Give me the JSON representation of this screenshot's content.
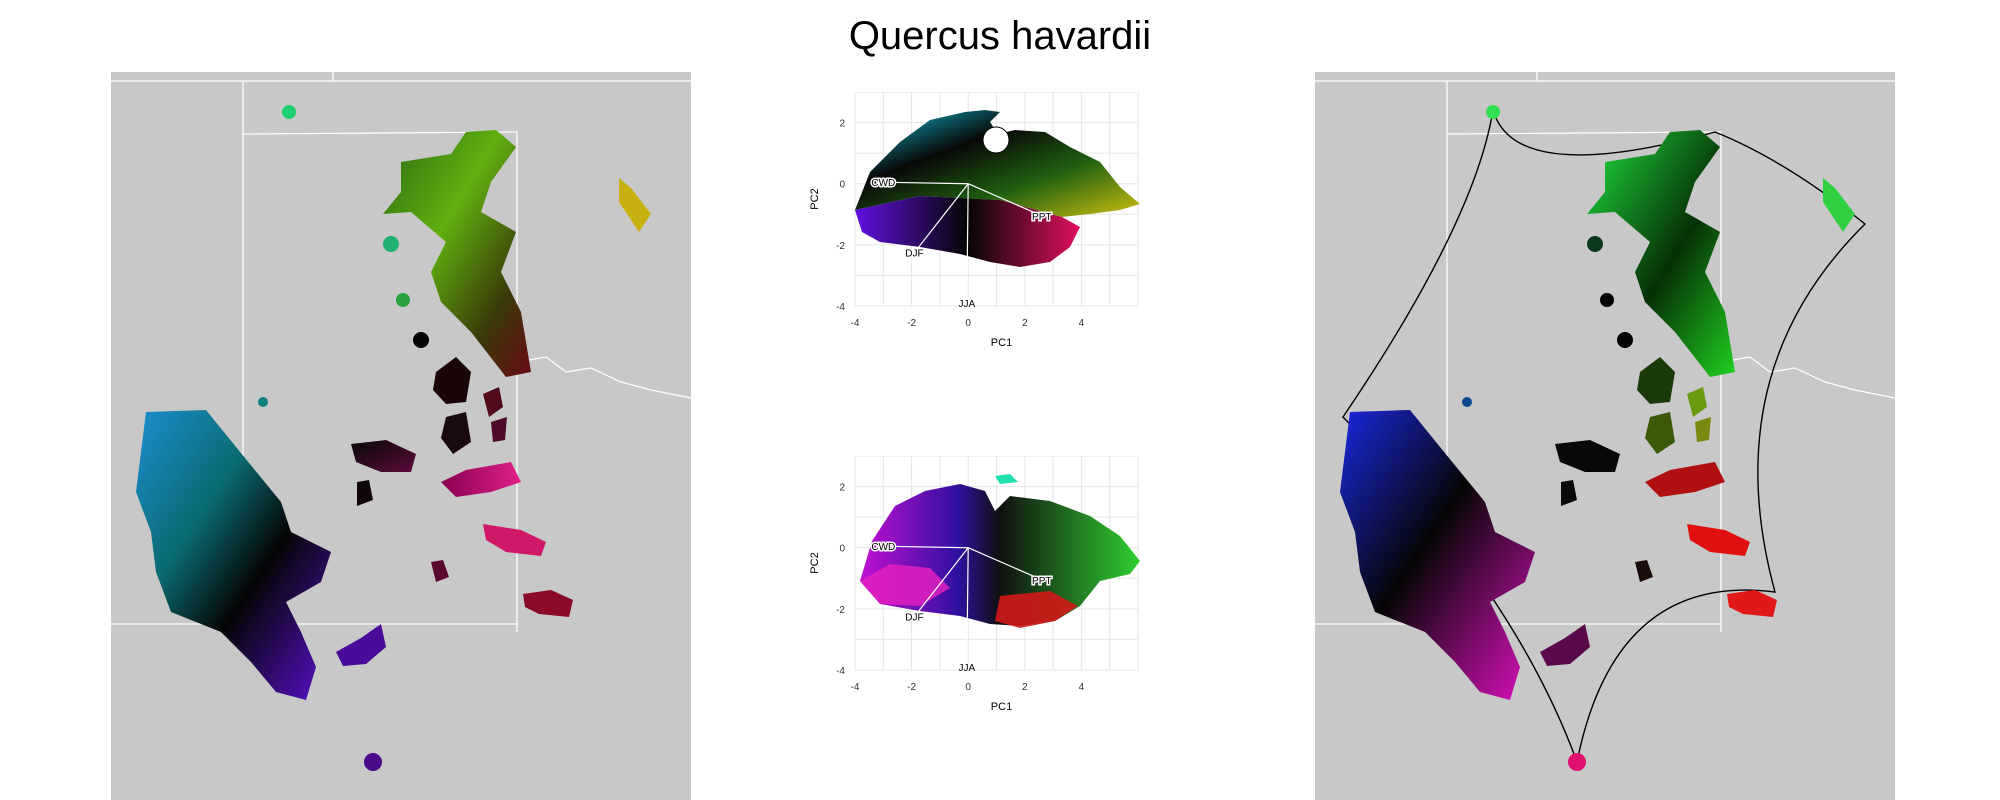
{
  "title": "Quercus havardii",
  "colors": {
    "map_background": "#c8c8c8",
    "boundary_lines": "#ffffff",
    "hull_outline": "#000000",
    "grid": "#e6e6e6"
  },
  "chart_data": [
    {
      "type": "scatter",
      "title": "",
      "xlabel": "PC1",
      "ylabel": "PC2",
      "xlim": [
        -4,
        6
      ],
      "ylim": [
        -4,
        3
      ],
      "x_ticks": [
        "-4",
        "-2",
        "0",
        "2",
        "4"
      ],
      "y_ticks": [
        "-4",
        "-2",
        "0",
        "2"
      ],
      "x_tick_values": [
        -4,
        -2,
        0,
        2,
        4
      ],
      "y_tick_values": [
        -4,
        -2,
        0,
        2
      ],
      "grid": true,
      "loadings": [
        {
          "label": "CWD",
          "x": -3.0,
          "y": 0.05
        },
        {
          "label": "PPT",
          "x": 2.6,
          "y": -1.05
        },
        {
          "label": "DJF",
          "x": -1.9,
          "y": -2.25
        },
        {
          "label": "JJA",
          "x": -0.05,
          "y": -3.9
        }
      ]
    },
    {
      "type": "scatter",
      "title": "",
      "xlabel": "PC1",
      "ylabel": "PC2",
      "xlim": [
        -4,
        6
      ],
      "ylim": [
        -4,
        3
      ],
      "x_ticks": [
        "-4",
        "-2",
        "0",
        "2",
        "4"
      ],
      "y_ticks": [
        "-4",
        "-2",
        "0",
        "2"
      ],
      "x_tick_values": [
        -4,
        -2,
        0,
        2,
        4
      ],
      "y_tick_values": [
        -4,
        -2,
        0,
        2
      ],
      "grid": true,
      "loadings": [
        {
          "label": "CWD",
          "x": -3.0,
          "y": 0.05
        },
        {
          "label": "PPT",
          "x": 2.6,
          "y": -1.05
        },
        {
          "label": "DJF",
          "x": -1.9,
          "y": -2.25
        },
        {
          "label": "JJA",
          "x": -0.05,
          "y": -3.9
        }
      ]
    }
  ]
}
